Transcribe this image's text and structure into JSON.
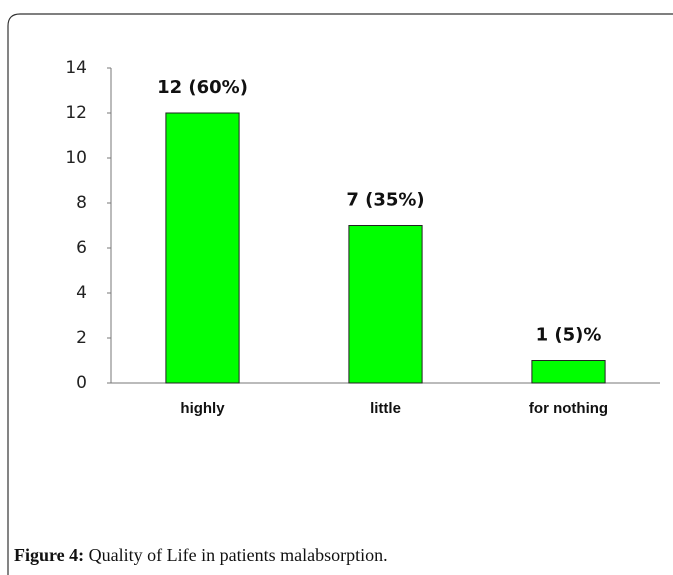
{
  "chart_data": {
    "type": "bar",
    "categories": [
      "highly",
      "little",
      "for nothing"
    ],
    "values": [
      12,
      7,
      1
    ],
    "value_labels": [
      "12 (60%)",
      "7 (35%)",
      "1 (5)%"
    ],
    "color": "#00ff00",
    "ylim": [
      0,
      14
    ],
    "yticks": [
      0,
      2,
      4,
      6,
      8,
      10,
      12,
      14
    ],
    "grid": false
  },
  "caption": {
    "label": "Figure 4:",
    "text": "Quality of Life in patients malabsorption."
  }
}
